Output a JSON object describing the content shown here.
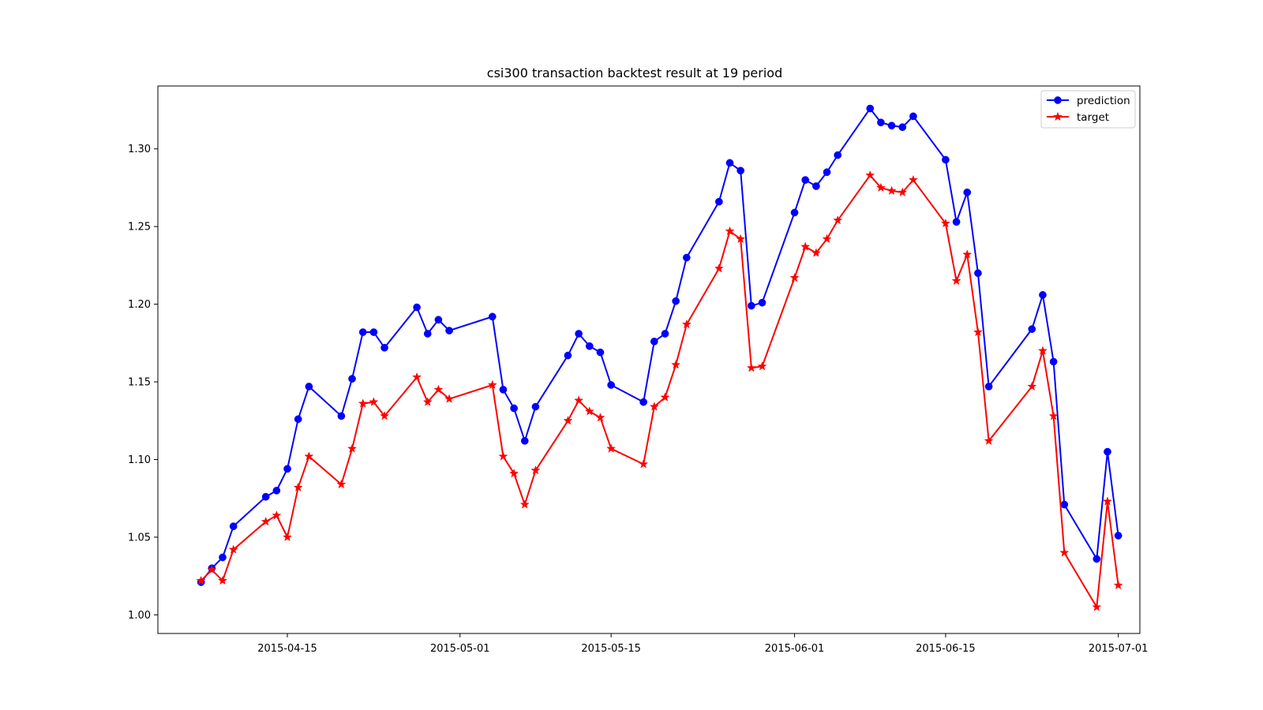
{
  "chart_data": {
    "type": "line",
    "title": "csi300 transaction backtest result at 19 period",
    "xlabel": "",
    "ylabel": "",
    "ylim": [
      0.988,
      1.3405
    ],
    "xlim": [
      "2015-04-03",
      "2015-07-03"
    ],
    "xticks": [
      "2015-04-15",
      "2015-05-01",
      "2015-05-15",
      "2015-06-01",
      "2015-06-15",
      "2015-07-01"
    ],
    "yticks": [
      1.0,
      1.05,
      1.1,
      1.15,
      1.2,
      1.25,
      1.3
    ],
    "ytick_labels": [
      "1.00",
      "1.05",
      "1.10",
      "1.15",
      "1.20",
      "1.25",
      "1.30"
    ],
    "grid": false,
    "legend_position": "top-right",
    "x": [
      "2015-04-07",
      "2015-04-08",
      "2015-04-09",
      "2015-04-10",
      "2015-04-13",
      "2015-04-14",
      "2015-04-15",
      "2015-04-16",
      "2015-04-17",
      "2015-04-20",
      "2015-04-21",
      "2015-04-22",
      "2015-04-23",
      "2015-04-24",
      "2015-04-27",
      "2015-04-28",
      "2015-04-29",
      "2015-04-30",
      "2015-05-04",
      "2015-05-05",
      "2015-05-06",
      "2015-05-07",
      "2015-05-08",
      "2015-05-11",
      "2015-05-12",
      "2015-05-13",
      "2015-05-14",
      "2015-05-15",
      "2015-05-18",
      "2015-05-19",
      "2015-05-20",
      "2015-05-21",
      "2015-05-22",
      "2015-05-25",
      "2015-05-26",
      "2015-05-27",
      "2015-05-28",
      "2015-05-29",
      "2015-06-01",
      "2015-06-02",
      "2015-06-03",
      "2015-06-04",
      "2015-06-05",
      "2015-06-08",
      "2015-06-09",
      "2015-06-10",
      "2015-06-11",
      "2015-06-12",
      "2015-06-15",
      "2015-06-16",
      "2015-06-17",
      "2015-06-18",
      "2015-06-19",
      "2015-06-23",
      "2015-06-24",
      "2015-06-25",
      "2015-06-26",
      "2015-06-29",
      "2015-06-30",
      "2015-07-01"
    ],
    "series": [
      {
        "name": "prediction",
        "color": "#0000ff",
        "marker": "circle",
        "values": [
          1.021,
          1.03,
          1.037,
          1.057,
          1.076,
          1.08,
          1.094,
          1.126,
          1.147,
          1.128,
          1.152,
          1.182,
          1.182,
          1.172,
          1.198,
          1.181,
          1.19,
          1.183,
          1.192,
          1.145,
          1.133,
          1.112,
          1.134,
          1.167,
          1.181,
          1.173,
          1.169,
          1.148,
          1.137,
          1.176,
          1.181,
          1.202,
          1.23,
          1.266,
          1.291,
          1.286,
          1.199,
          1.201,
          1.259,
          1.28,
          1.276,
          1.285,
          1.296,
          1.326,
          1.317,
          1.315,
          1.314,
          1.321,
          1.293,
          1.253,
          1.272,
          1.22,
          1.147,
          1.184,
          1.206,
          1.163,
          1.071,
          1.036,
          1.105,
          1.051
        ]
      },
      {
        "name": "target",
        "color": "#ff0000",
        "marker": "star",
        "values": [
          1.022,
          1.029,
          1.022,
          1.042,
          1.06,
          1.064,
          1.05,
          1.082,
          1.102,
          1.084,
          1.107,
          1.136,
          1.137,
          1.128,
          1.153,
          1.137,
          1.145,
          1.139,
          1.148,
          1.102,
          1.091,
          1.071,
          1.093,
          1.125,
          1.138,
          1.131,
          1.127,
          1.107,
          1.097,
          1.134,
          1.14,
          1.161,
          1.187,
          1.223,
          1.247,
          1.242,
          1.159,
          1.16,
          1.217,
          1.237,
          1.233,
          1.242,
          1.254,
          1.283,
          1.275,
          1.273,
          1.272,
          1.28,
          1.252,
          1.215,
          1.232,
          1.182,
          1.112,
          1.147,
          1.17,
          1.128,
          1.04,
          1.005,
          1.073,
          1.019
        ]
      }
    ]
  }
}
